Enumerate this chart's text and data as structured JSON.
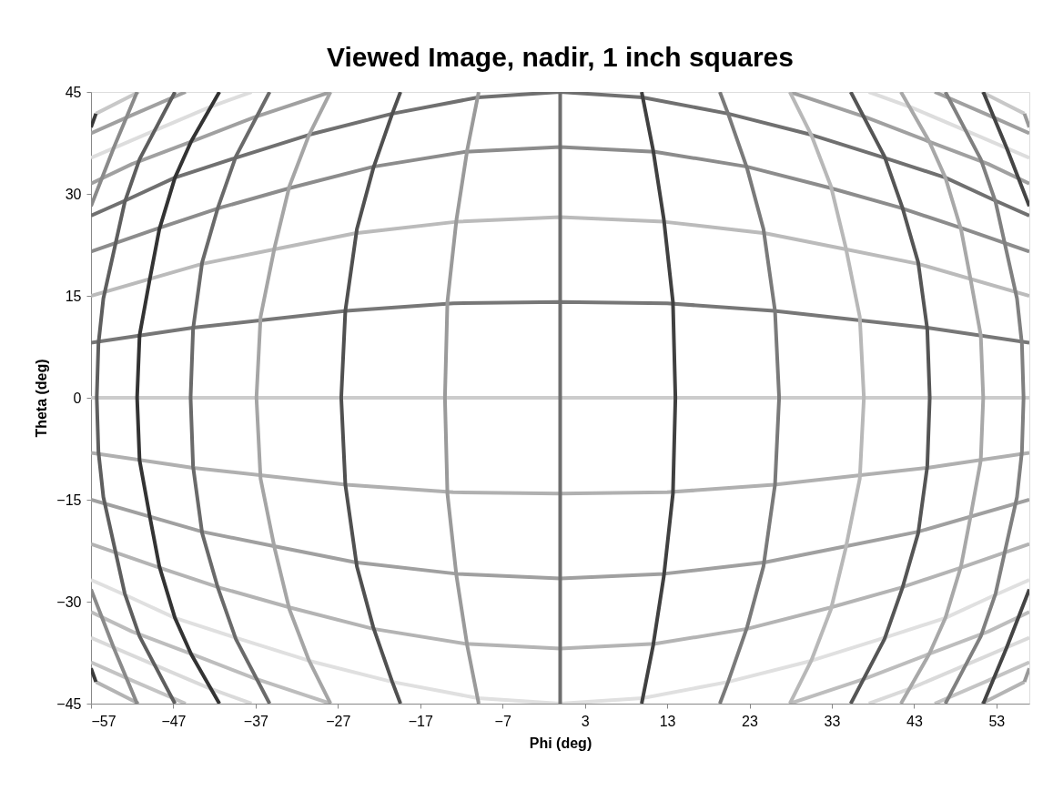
{
  "chart_data": {
    "type": "line",
    "title": "Viewed Image, nadir, 1 inch squares",
    "xlabel": "Phi (deg)",
    "ylabel": "Theta (deg)",
    "xlim": [
      -57,
      57
    ],
    "xticks": [
      -57,
      -47,
      -37,
      -27,
      -17,
      -7,
      3,
      13,
      23,
      33,
      43,
      53
    ],
    "ylim": [
      -45,
      45
    ],
    "yticks": [
      -45,
      -30,
      -15,
      0,
      15,
      30,
      45
    ],
    "line_style": "solid",
    "series": [
      {
        "color": "#b4b4b4",
        "x": [
          -56.4,
          -51.2,
          null,
          51.2,
          56.4
        ],
        "values": [
          -41.8,
          -45,
          null,
          -45,
          -41.8
        ]
      },
      {
        "color": "#c4c4c4",
        "x": [
          -57,
          -52,
          -45.5,
          null,
          45.5,
          52,
          57
        ],
        "values": [
          -38.9,
          -41.6,
          -45,
          null,
          -45,
          -41.6,
          -38.9
        ]
      },
      {
        "color": "#dadada",
        "x": [
          -57,
          -50.1,
          -42.7,
          -37.5,
          null,
          37.5,
          42.7,
          50.1,
          57
        ],
        "values": [
          -35.3,
          -38.9,
          -42.7,
          -45,
          null,
          -45,
          -42.7,
          -38.9,
          -35.3
        ]
      },
      {
        "color": "#bdbdbd",
        "x": [
          -57,
          -52,
          -44.6,
          -37.1,
          -27.9,
          null,
          27.9,
          37.1,
          44.6,
          52,
          57
        ],
        "values": [
          -31.5,
          -34.4,
          -37.8,
          -41.3,
          -45,
          null,
          -45,
          -41.3,
          -37.8,
          -34.4,
          -31.5
        ]
      },
      {
        "color": "#e0e0e0",
        "x": [
          -57,
          -52.7,
          -46.8,
          -39.4,
          -30.5,
          -20.4,
          -10,
          0,
          10,
          20.4,
          30.5,
          39.4,
          46.8,
          52.7,
          57
        ],
        "values": [
          -26.8,
          -29.1,
          -32.4,
          -35.3,
          -38.7,
          -41.8,
          -44.2,
          -45,
          -44.2,
          -41.8,
          -38.7,
          -35.3,
          -32.4,
          -29.1,
          -26.8
        ]
      },
      {
        "color": "#b4b4b4",
        "x": [
          -57,
          -48.7,
          -41.2,
          -32.7,
          -22.7,
          -11.5,
          0,
          11.5,
          22.7,
          32.7,
          41.2,
          48.7,
          57
        ],
        "values": [
          -21.5,
          -25,
          -28,
          -30.9,
          -34,
          -36.2,
          -36.9,
          -36.2,
          -34,
          -30.9,
          -28,
          -25,
          -21.5
        ]
      },
      {
        "color": "#a0a0a0",
        "x": [
          -57,
          -43.5,
          -34.5,
          -24.9,
          -12.6,
          0,
          12.6,
          24.9,
          34.5,
          43.5,
          57
        ],
        "values": [
          -15,
          -19.7,
          -21.9,
          -24.2,
          -25.9,
          -26.6,
          -25.9,
          -24.2,
          -21.9,
          -19.7,
          -15
        ]
      },
      {
        "color": "#b0b0b0",
        "x": [
          -57,
          -44.6,
          -26,
          -13,
          0,
          13,
          26,
          44.6,
          57
        ],
        "values": [
          -8.1,
          -10.3,
          -12.8,
          -13.9,
          -14.1,
          -13.9,
          -12.8,
          -10.3,
          -8.1
        ]
      },
      {
        "color": "#cccccc",
        "x": [
          -57,
          57
        ],
        "values": [
          0,
          0
        ]
      },
      {
        "color": "#777777",
        "x": [
          -57,
          -44.6,
          -26,
          -13,
          0,
          13,
          26,
          44.6,
          57
        ],
        "values": [
          8.1,
          10.3,
          12.8,
          13.9,
          14.1,
          13.9,
          12.8,
          10.3,
          8.1
        ]
      },
      {
        "color": "#bbbbbb",
        "x": [
          -57,
          -43.5,
          -34.5,
          -24.9,
          -12.6,
          0,
          12.6,
          24.9,
          34.5,
          43.5,
          57
        ],
        "values": [
          15,
          19.7,
          21.9,
          24.2,
          25.9,
          26.6,
          25.9,
          24.2,
          21.9,
          19.7,
          15
        ]
      },
      {
        "color": "#8c8c8c",
        "x": [
          -57,
          -48.7,
          -41.2,
          -32.7,
          -22.7,
          -11.5,
          0,
          11.5,
          22.7,
          32.7,
          41.2,
          48.7,
          57
        ],
        "values": [
          21.5,
          25,
          28,
          30.9,
          34,
          36.2,
          36.9,
          36.2,
          34,
          30.9,
          28,
          25,
          21.5
        ]
      },
      {
        "color": "#707070",
        "x": [
          -57,
          -52.7,
          -46.8,
          -39.4,
          -30.5,
          -20.4,
          -10,
          0,
          10,
          20.4,
          30.5,
          39.4,
          46.8,
          52.7,
          57
        ],
        "values": [
          26.8,
          29.1,
          32.4,
          35.3,
          38.7,
          41.8,
          44.2,
          45,
          44.2,
          41.8,
          38.7,
          35.3,
          32.4,
          29.1,
          26.8
        ]
      },
      {
        "color": "#a0a0a0",
        "x": [
          -57,
          -52,
          -44.6,
          -37.1,
          -27.9,
          null,
          27.9,
          37.1,
          44.6,
          52,
          57
        ],
        "values": [
          31.5,
          34.4,
          37.8,
          41.3,
          45,
          null,
          45,
          41.3,
          37.8,
          34.4,
          31.5
        ]
      },
      {
        "color": "#dddddd",
        "x": [
          -57,
          -50.1,
          -42.7,
          -37.5,
          null,
          37.5,
          42.7,
          50.1,
          57
        ],
        "values": [
          35.3,
          38.9,
          42.7,
          45,
          null,
          45,
          42.7,
          38.9,
          35.3
        ]
      },
      {
        "color": "#a0a0a0",
        "x": [
          -57,
          -52,
          -45.5,
          null,
          45.5,
          52,
          57
        ],
        "values": [
          38.9,
          41.6,
          45,
          null,
          45,
          41.6,
          38.9
        ]
      },
      {
        "color": "#c8c8c8",
        "x": [
          -56.4,
          -51.2,
          null,
          51.2,
          56.4
        ],
        "values": [
          41.8,
          45,
          null,
          45,
          41.8
        ]
      },
      {
        "color": "#3a3a3a",
        "x": [
          -56.4,
          -57
        ],
        "values": [
          -41.8,
          -39.8
        ]
      },
      {
        "color": "#3a3a3a",
        "x": [
          -57,
          -56.4
        ],
        "values": [
          39.8,
          41.8
        ]
      },
      {
        "color": "#8a8a8a",
        "x": [
          -51.4,
          -54.2,
          -57,
          null,
          -57,
          -54.2,
          -51.4
        ],
        "values": [
          -45,
          -36.9,
          -28.2,
          null,
          28.2,
          36.9,
          45
        ]
      },
      {
        "color": "#5e5e5e",
        "x": [
          -46.8,
          -48.8,
          -51.1,
          -52.9,
          -54.2,
          -55.5,
          -56.1,
          -56.3,
          -56.1,
          -55.5,
          -54.2,
          -52.9,
          -51.1,
          -48.8,
          -46.8
        ],
        "values": [
          -45,
          -40.4,
          -35.1,
          -28.8,
          -21.7,
          -14.6,
          -7.9,
          0,
          7.9,
          14.6,
          21.7,
          28.8,
          35.1,
          40.4,
          45
        ]
      },
      {
        "color": "#333333",
        "x": [
          -41.4,
          -44.8,
          -46.8,
          -48.7,
          -49.9,
          -51.1,
          -51.4,
          -51.1,
          -49.9,
          -48.7,
          -46.8,
          -44.8,
          -41.4
        ],
        "values": [
          -45,
          -37.8,
          -32.4,
          -24.8,
          -17.2,
          -9.2,
          0,
          9.2,
          17.2,
          24.8,
          32.4,
          37.8,
          45
        ]
      },
      {
        "color": "#6a6a6a",
        "x": [
          -35.3,
          -39.4,
          -41.6,
          -43.5,
          -44.6,
          -44.9,
          -44.6,
          -43.5,
          -41.6,
          -39.4,
          -35.3
        ],
        "values": [
          -45,
          -35.5,
          -27.9,
          -19.9,
          -10.1,
          0,
          10.1,
          19.9,
          27.9,
          35.5,
          45
        ]
      },
      {
        "color": "#a5a5a5",
        "x": [
          -27.9,
          -30.5,
          -32.9,
          -34.7,
          -36.4,
          -36.9,
          -36.4,
          -34.7,
          -32.9,
          -30.5,
          -27.9
        ],
        "values": [
          -45,
          -38.7,
          -31.1,
          -22.1,
          -11.9,
          0,
          11.9,
          22.1,
          31.1,
          38.7,
          45
        ]
      },
      {
        "color": "#505050",
        "x": [
          -19.4,
          -20.4,
          -22.7,
          -24.7,
          -26.1,
          -26.6,
          -26.1,
          -24.7,
          -22.7,
          -20.4,
          -19.4
        ],
        "values": [
          -45,
          -41.8,
          -33.8,
          -24.8,
          -12.8,
          0,
          12.8,
          24.8,
          33.8,
          41.8,
          45
        ]
      },
      {
        "color": "#9a9a9a",
        "x": [
          -9.9,
          -11.3,
          -12.6,
          -13.7,
          -14,
          -13.7,
          -12.6,
          -11.3,
          -9.9
        ],
        "values": [
          -45,
          -36.4,
          -26.2,
          -14.1,
          0,
          14.1,
          26.2,
          36.4,
          45
        ]
      },
      {
        "color": "#6e6e6e",
        "x": [
          0,
          0
        ],
        "values": [
          -45,
          45
        ]
      },
      {
        "color": "#404040",
        "x": [
          9.9,
          11.3,
          12.6,
          13.7,
          14,
          13.7,
          12.6,
          11.3,
          9.9
        ],
        "values": [
          -45,
          -36.4,
          -26.2,
          -14.1,
          0,
          14.1,
          26.2,
          36.4,
          45
        ]
      },
      {
        "color": "#7a7a7a",
        "x": [
          19.4,
          20.4,
          22.7,
          24.7,
          26.1,
          26.6,
          26.1,
          24.7,
          22.7,
          20.4,
          19.4
        ],
        "values": [
          -45,
          -41.8,
          -33.8,
          -24.8,
          -12.8,
          0,
          12.8,
          24.8,
          33.8,
          41.8,
          45
        ]
      },
      {
        "color": "#b8b8b8",
        "x": [
          27.9,
          30.5,
          32.9,
          34.7,
          36.4,
          36.9,
          36.4,
          34.7,
          32.9,
          30.5,
          27.9
        ],
        "values": [
          -45,
          -38.7,
          -31.1,
          -22.1,
          -11.9,
          0,
          11.9,
          22.1,
          31.1,
          38.7,
          45
        ]
      },
      {
        "color": "#555555",
        "x": [
          35.3,
          39.4,
          41.6,
          43.5,
          44.6,
          44.9,
          44.6,
          43.5,
          41.6,
          39.4,
          35.3
        ],
        "values": [
          -45,
          -35.5,
          -27.9,
          -19.9,
          -10.1,
          0,
          10.1,
          19.9,
          27.9,
          35.5,
          45
        ]
      },
      {
        "color": "#a8a8a8",
        "x": [
          41.4,
          44.8,
          46.8,
          48.7,
          49.9,
          51.1,
          51.4,
          51.1,
          49.9,
          48.7,
          46.8,
          44.8,
          41.4
        ],
        "values": [
          -45,
          -37.8,
          -32.4,
          -24.8,
          -17.2,
          -9.2,
          0,
          9.2,
          17.2,
          24.8,
          32.4,
          37.8,
          45
        ]
      },
      {
        "color": "#808080",
        "x": [
          46.8,
          48.8,
          51.1,
          52.9,
          54.2,
          55.5,
          56.1,
          56.3,
          56.1,
          55.5,
          54.2,
          52.9,
          51.1,
          48.8,
          46.8
        ],
        "values": [
          -45,
          -40.4,
          -35.1,
          -28.8,
          -21.7,
          -14.6,
          -7.9,
          0,
          7.9,
          14.6,
          21.7,
          28.8,
          35.1,
          40.4,
          45
        ]
      },
      {
        "color": "#444444",
        "x": [
          51.4,
          54.2,
          57,
          null,
          57,
          54.2,
          51.4
        ],
        "values": [
          -45,
          -36.9,
          -28.2,
          null,
          28.2,
          36.9,
          45
        ]
      },
      {
        "color": "#999999",
        "x": [
          56.4,
          57
        ],
        "values": [
          -41.8,
          -39.8
        ]
      },
      {
        "color": "#999999",
        "x": [
          57,
          56.4
        ],
        "values": [
          39.8,
          41.8
        ]
      }
    ]
  }
}
